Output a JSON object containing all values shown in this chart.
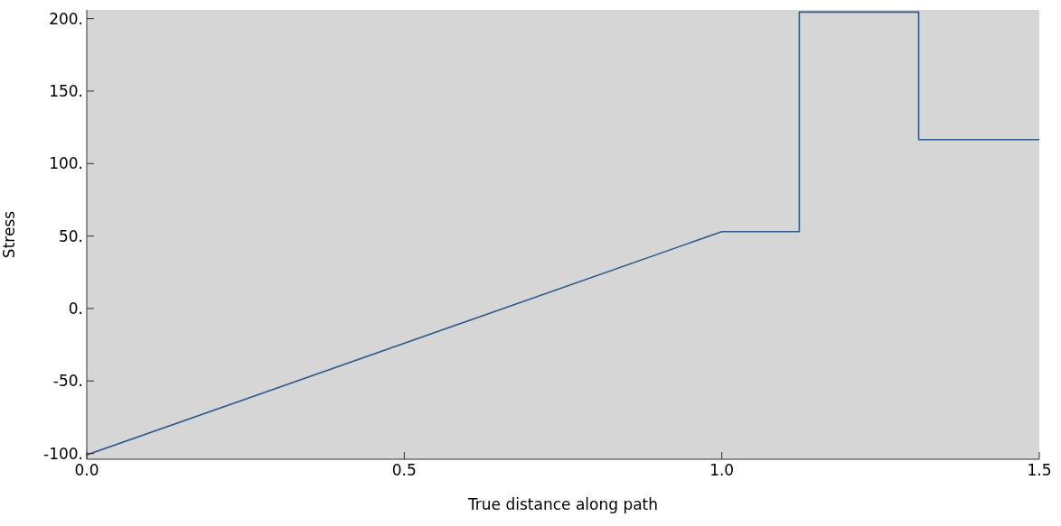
{
  "chart_data": {
    "type": "line",
    "xlabel": "True distance along path",
    "ylabel": "Stress",
    "x": [
      0,
      1.0,
      1.122,
      1.122,
      1.31,
      1.31,
      1.5
    ],
    "series": [
      {
        "color": "#2f5a8a",
        "values": [
          -101,
          53,
          53,
          204.5,
          204.5,
          116.5,
          116.5
        ]
      }
    ],
    "xlim": [
      0,
      1.5
    ],
    "ylim": [
      -104,
      206
    ],
    "xticks": [
      {
        "value": 0,
        "label": "0.0"
      },
      {
        "value": 0.5,
        "label": "0.5"
      },
      {
        "value": 1,
        "label": "1.0"
      },
      {
        "value": 1.5,
        "label": "1.5"
      }
    ],
    "yticks": [
      {
        "value": -100,
        "label": "-100."
      },
      {
        "value": -50,
        "label": "-50."
      },
      {
        "value": 0,
        "label": "0."
      },
      {
        "value": 50,
        "label": "50."
      },
      {
        "value": 100,
        "label": "100."
      },
      {
        "value": 150,
        "label": "150."
      },
      {
        "value": 200,
        "label": "200."
      }
    ],
    "grid": false,
    "marker": "none",
    "line_style": "solid"
  }
}
